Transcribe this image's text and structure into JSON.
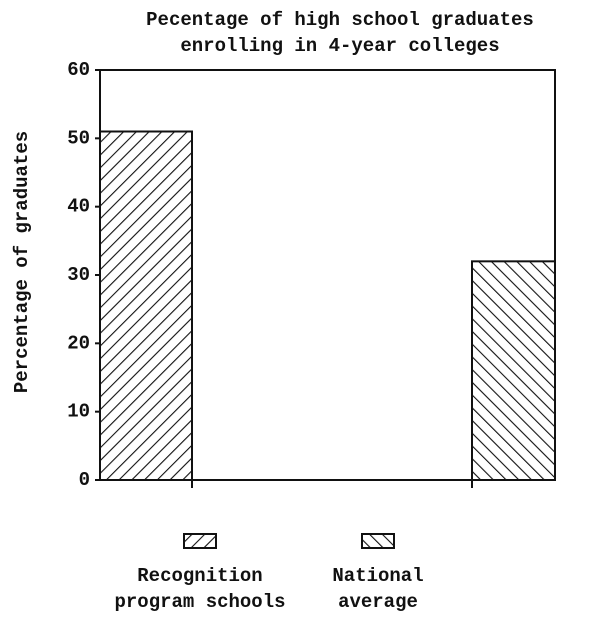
{
  "chart_data": {
    "type": "bar",
    "title": [
      "Pecentage of high school graduates",
      "enrolling in 4-year colleges"
    ],
    "y_label": "Percentage of graduates",
    "series": [
      {
        "name": "Recognition program schools",
        "color": "#111111",
        "hatch": "forward",
        "values": [
          51
        ]
      },
      {
        "name": "National average",
        "color": "#111111",
        "hatch": "back",
        "values": [
          32
        ]
      }
    ],
    "ylim": [
      0,
      60
    ],
    "yticks": [
      0,
      10,
      20,
      30,
      40,
      50,
      60
    ]
  }
}
